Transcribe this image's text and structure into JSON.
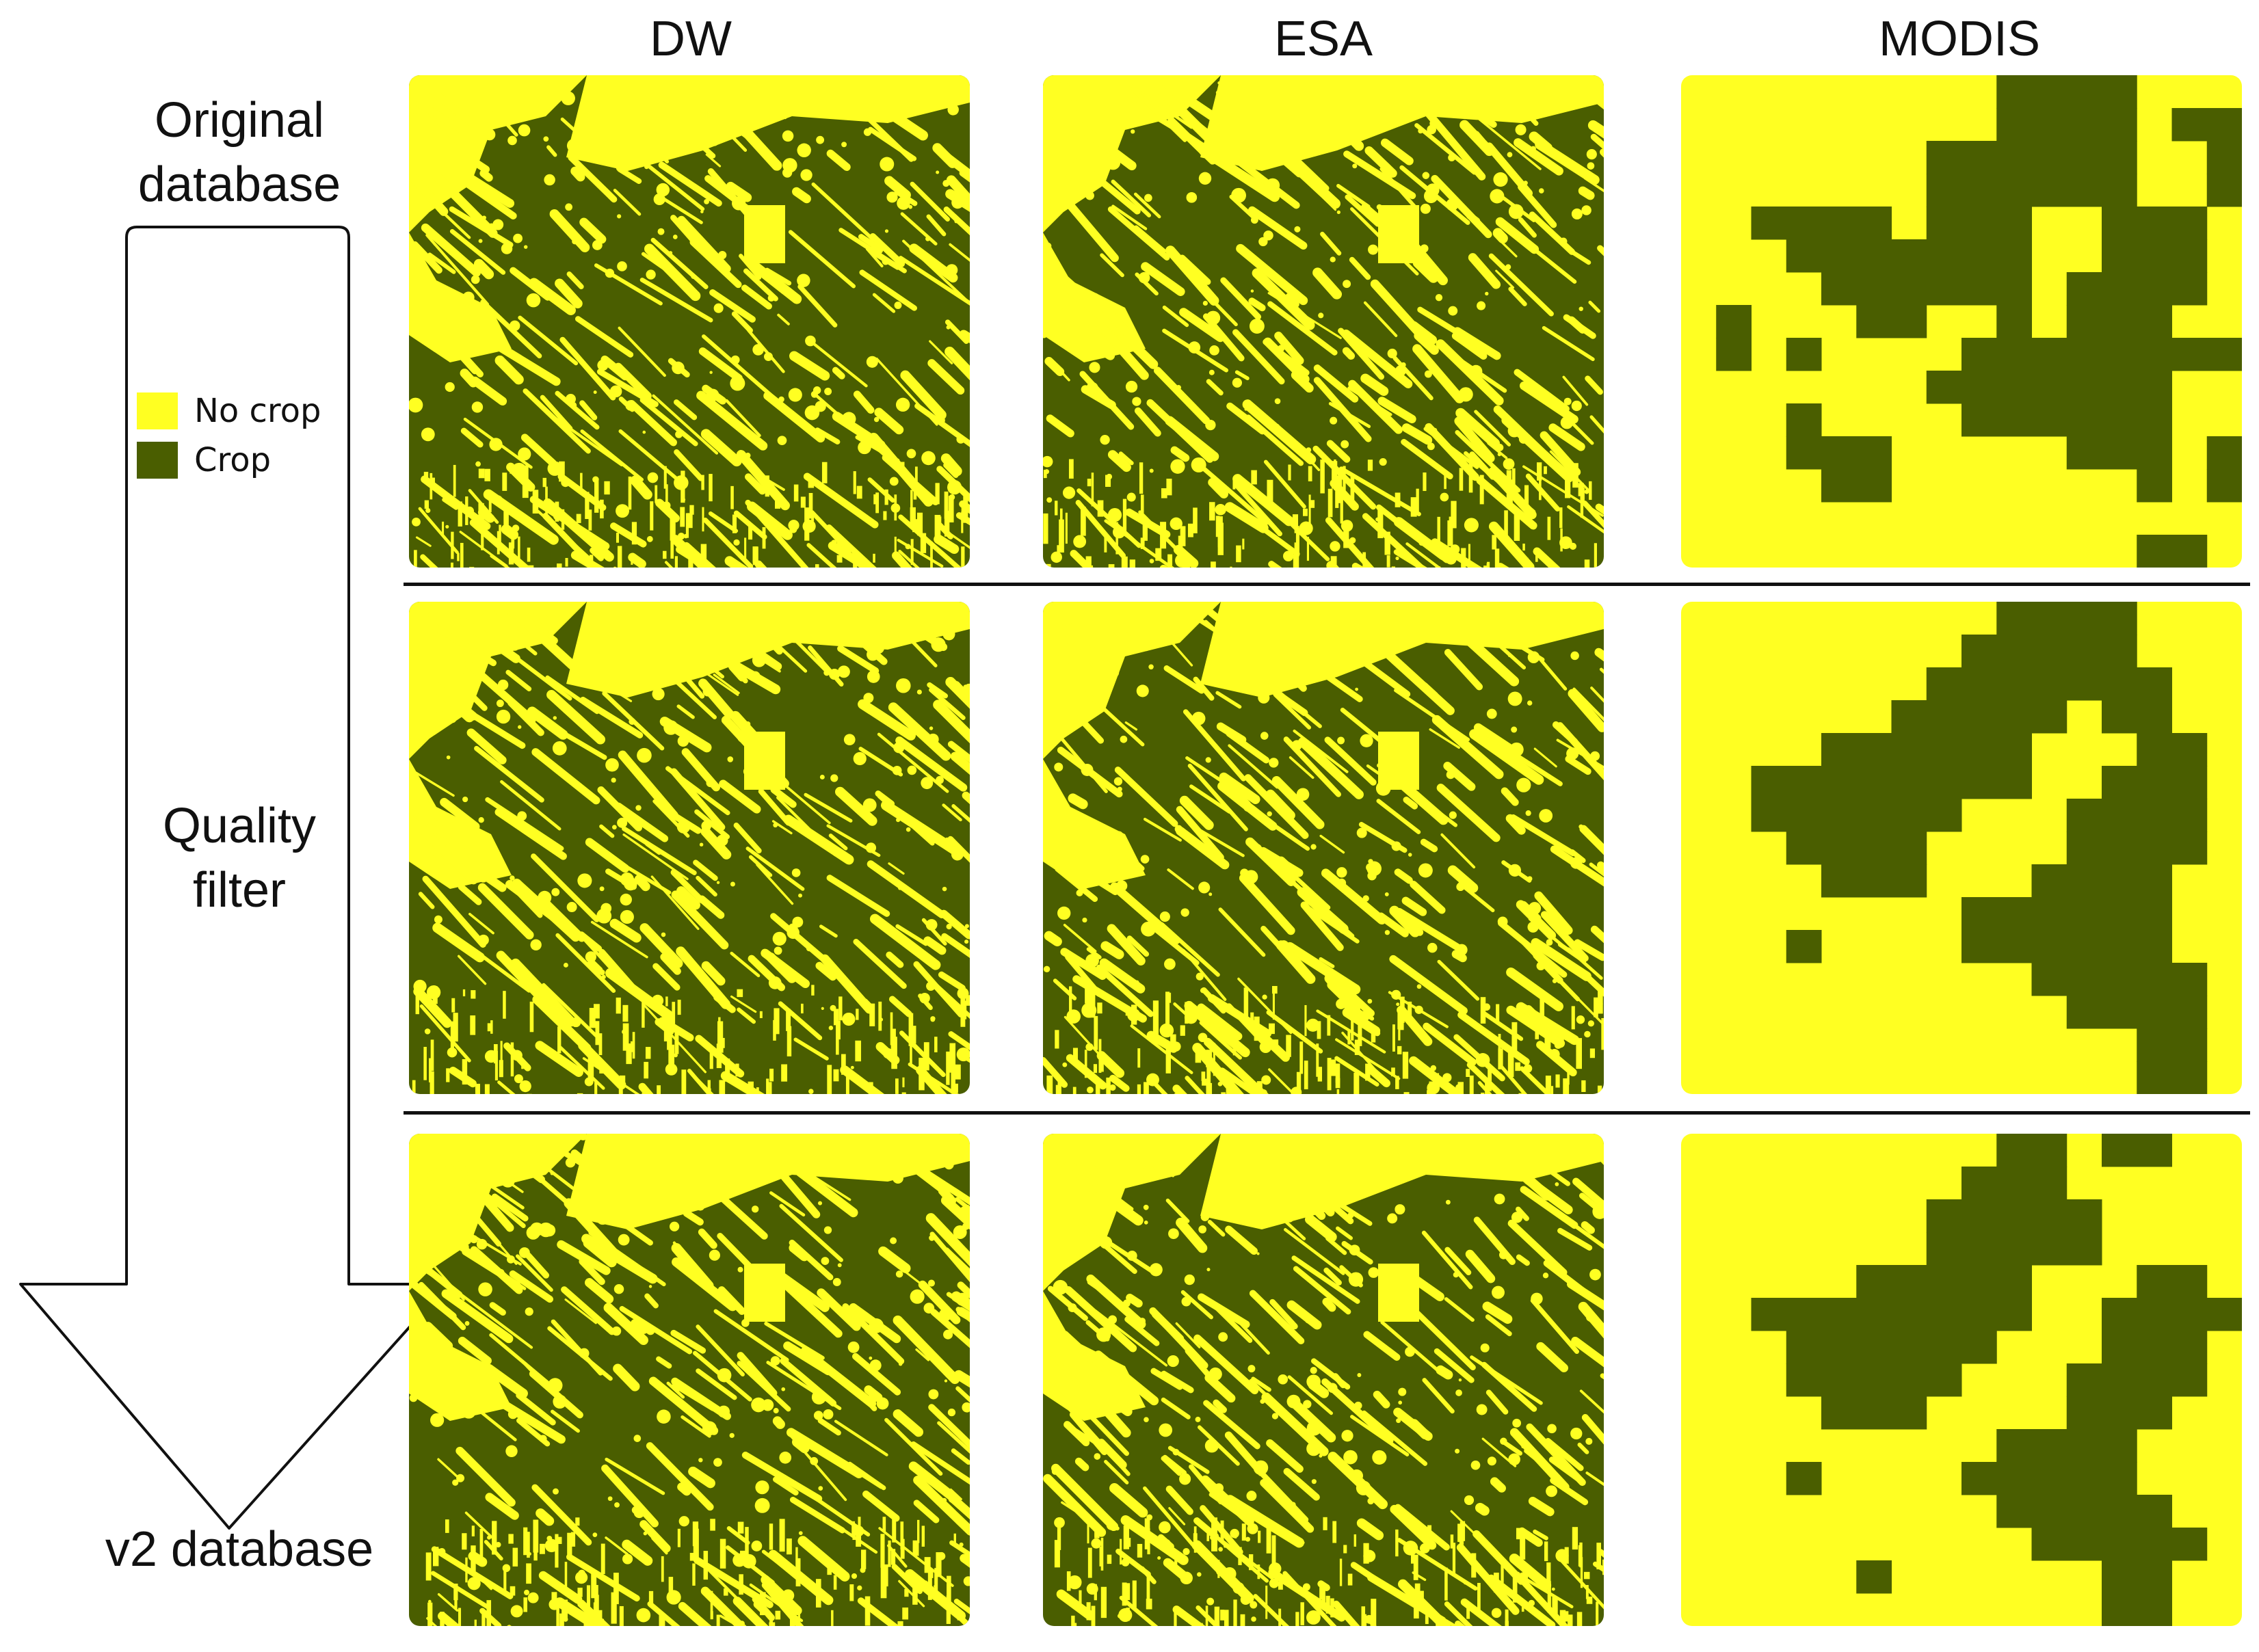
{
  "colors": {
    "no_crop": "#FFFF22",
    "crop": "#4A5E00",
    "line": "#111111"
  },
  "columns": [
    "DW",
    "ESA",
    "MODIS"
  ],
  "flow": {
    "start_label_line1": "Original",
    "start_label_line2": "database",
    "middle_label_line1": "Quality",
    "middle_label_line2": "filter",
    "end_label": "v2 database"
  },
  "legend": [
    {
      "label": "No crop",
      "color": "#FFFF22"
    },
    {
      "label": "Crop",
      "color": "#4A5E00"
    }
  ],
  "rows": [
    "original",
    "quality_filtered",
    "v2"
  ]
}
